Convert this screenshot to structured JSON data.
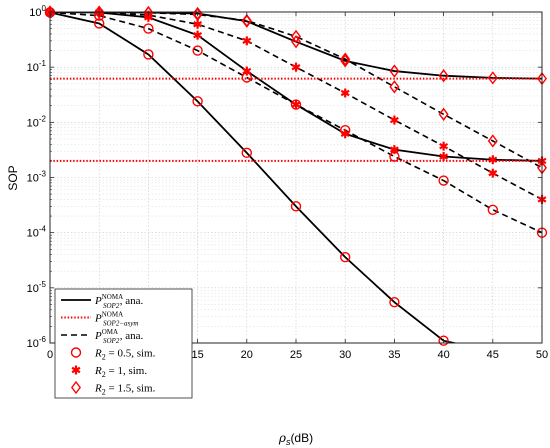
{
  "chart_data": {
    "type": "line",
    "xlabel": "ρs(dB)",
    "ylabel": "SOP",
    "xlim": [
      0,
      50
    ],
    "ylim": [
      1e-06,
      1
    ],
    "yscale": "log",
    "grid": true,
    "x_ticks": [
      0,
      5,
      10,
      15,
      20,
      25,
      30,
      35,
      40,
      45,
      50
    ],
    "y_ticks": [
      1e-06,
      1e-05,
      0.0001,
      0.001,
      0.01,
      0.1,
      1
    ],
    "y_tick_labels": [
      {
        "base": "10",
        "exp": "-6"
      },
      {
        "base": "10",
        "exp": "-5"
      },
      {
        "base": "10",
        "exp": "-4"
      },
      {
        "base": "10",
        "exp": "-3"
      },
      {
        "base": "10",
        "exp": "-2"
      },
      {
        "base": "10",
        "exp": "-1"
      },
      {
        "base": "10",
        "exp": "0"
      }
    ],
    "colors": {
      "noma": "#000000",
      "asym": "#ff0000",
      "oma": "#000000",
      "markers": "#ff0000"
    },
    "legend_placement": "bottom-left",
    "legend": [
      {
        "kind": "solid",
        "main": "P",
        "sup": "NOMA",
        "sub": "SOP2",
        "suffix": ", ana."
      },
      {
        "kind": "dotted",
        "main": "P",
        "sup": "NOMA",
        "sub": "SOP2−asym",
        "suffix": ""
      },
      {
        "kind": "dashed",
        "main": "P",
        "sup": "OMA",
        "sub": "SOP2",
        "suffix": ", ana."
      },
      {
        "kind": "circle",
        "text": "R2 = 0.5, sim."
      },
      {
        "kind": "star",
        "text": "R2 = 1, sim."
      },
      {
        "kind": "diamond",
        "text": "R2 = 1.5, sim."
      }
    ],
    "series": [
      {
        "rate": "0.5",
        "line": "solid",
        "marker": "circle",
        "x": [
          0,
          5,
          10,
          15,
          20,
          25,
          30,
          35,
          40,
          45,
          50
        ],
        "y": [
          0.98,
          0.62,
          0.17,
          0.024,
          0.0028,
          0.0003,
          3.6e-05,
          5.5e-06,
          1.1e-06,
          7e-07,
          7e-07
        ]
      },
      {
        "rate": "1",
        "line": "solid",
        "marker": "none",
        "x": [
          0,
          5,
          10,
          15,
          20,
          25,
          30,
          35,
          40,
          45,
          50
        ],
        "y": [
          0.995,
          0.98,
          0.8,
          0.38,
          0.085,
          0.021,
          0.0062,
          0.0032,
          0.0024,
          0.0021,
          0.002
        ]
      },
      {
        "rate": "1.5",
        "line": "solid",
        "marker": "none",
        "x": [
          0,
          5,
          10,
          15,
          20,
          25,
          30,
          35,
          40,
          45,
          50
        ],
        "y": [
          0.999,
          0.995,
          0.98,
          0.94,
          0.68,
          0.29,
          0.13,
          0.085,
          0.07,
          0.064,
          0.062
        ]
      },
      {
        "rate": "0.5",
        "line": "dashed",
        "marker": "none",
        "x": [
          0,
          5,
          10,
          15,
          20,
          25,
          30,
          35,
          40,
          45,
          50
        ],
        "y": [
          0.98,
          0.86,
          0.5,
          0.2,
          0.065,
          0.021,
          0.0072,
          0.0024,
          0.00088,
          0.00026,
          0.0001
        ]
      },
      {
        "rate": "1",
        "line": "dashed",
        "marker": "none",
        "x": [
          0,
          5,
          10,
          15,
          20,
          25,
          30,
          35,
          40,
          45,
          50
        ],
        "y": [
          0.999,
          0.97,
          0.88,
          0.6,
          0.3,
          0.1,
          0.034,
          0.011,
          0.0037,
          0.0012,
          0.0004
        ]
      },
      {
        "rate": "1.5",
        "line": "dashed",
        "marker": "none",
        "x": [
          0,
          5,
          10,
          15,
          20,
          25,
          30,
          35,
          40,
          45,
          50
        ],
        "y": [
          1.0,
          0.995,
          0.97,
          0.9,
          0.7,
          0.36,
          0.14,
          0.044,
          0.014,
          0.0046,
          0.0015
        ]
      }
    ],
    "asymptotes": [
      {
        "rate": "1",
        "y": 0.002
      },
      {
        "rate": "1.5",
        "y": 0.062
      }
    ],
    "markers": [
      {
        "rate": "0.5",
        "kind": "circle",
        "x": [
          0,
          5,
          10,
          15,
          20,
          25,
          30,
          35,
          40
        ],
        "y": [
          0.98,
          0.62,
          0.17,
          0.024,
          0.0028,
          0.0003,
          3.6e-05,
          5.5e-06,
          1.1e-06
        ]
      },
      {
        "rate": "0.5",
        "kind": "circle",
        "x": [
          0,
          5,
          10,
          15,
          20,
          25,
          30,
          35,
          40,
          45,
          50
        ],
        "y": [
          0.98,
          0.86,
          0.5,
          0.2,
          0.065,
          0.021,
          0.0072,
          0.0024,
          0.00088,
          0.00026,
          0.0001
        ]
      },
      {
        "rate": "1",
        "kind": "star",
        "x": [
          0,
          5,
          10,
          15,
          20,
          25,
          30,
          35,
          40,
          45,
          50
        ],
        "y": [
          0.995,
          0.98,
          0.8,
          0.38,
          0.085,
          0.021,
          0.0062,
          0.0032,
          0.0024,
          0.0021,
          0.002
        ]
      },
      {
        "rate": "1",
        "kind": "star",
        "x": [
          0,
          5,
          10,
          15,
          20,
          25,
          30,
          35,
          40,
          45,
          50
        ],
        "y": [
          0.999,
          0.97,
          0.88,
          0.6,
          0.3,
          0.1,
          0.034,
          0.011,
          0.0037,
          0.0012,
          0.0004
        ]
      },
      {
        "rate": "1.5",
        "kind": "diamond",
        "x": [
          0,
          5,
          10,
          15,
          20,
          25,
          30,
          35,
          40,
          45,
          50
        ],
        "y": [
          0.999,
          0.995,
          0.98,
          0.94,
          0.68,
          0.29,
          0.13,
          0.085,
          0.07,
          0.064,
          0.062
        ]
      },
      {
        "rate": "1.5",
        "kind": "diamond",
        "x": [
          0,
          5,
          10,
          15,
          20,
          25,
          30,
          35,
          40,
          45,
          50
        ],
        "y": [
          1.0,
          0.995,
          0.97,
          0.9,
          0.7,
          0.36,
          0.14,
          0.044,
          0.014,
          0.0046,
          0.0015
        ]
      }
    ]
  }
}
